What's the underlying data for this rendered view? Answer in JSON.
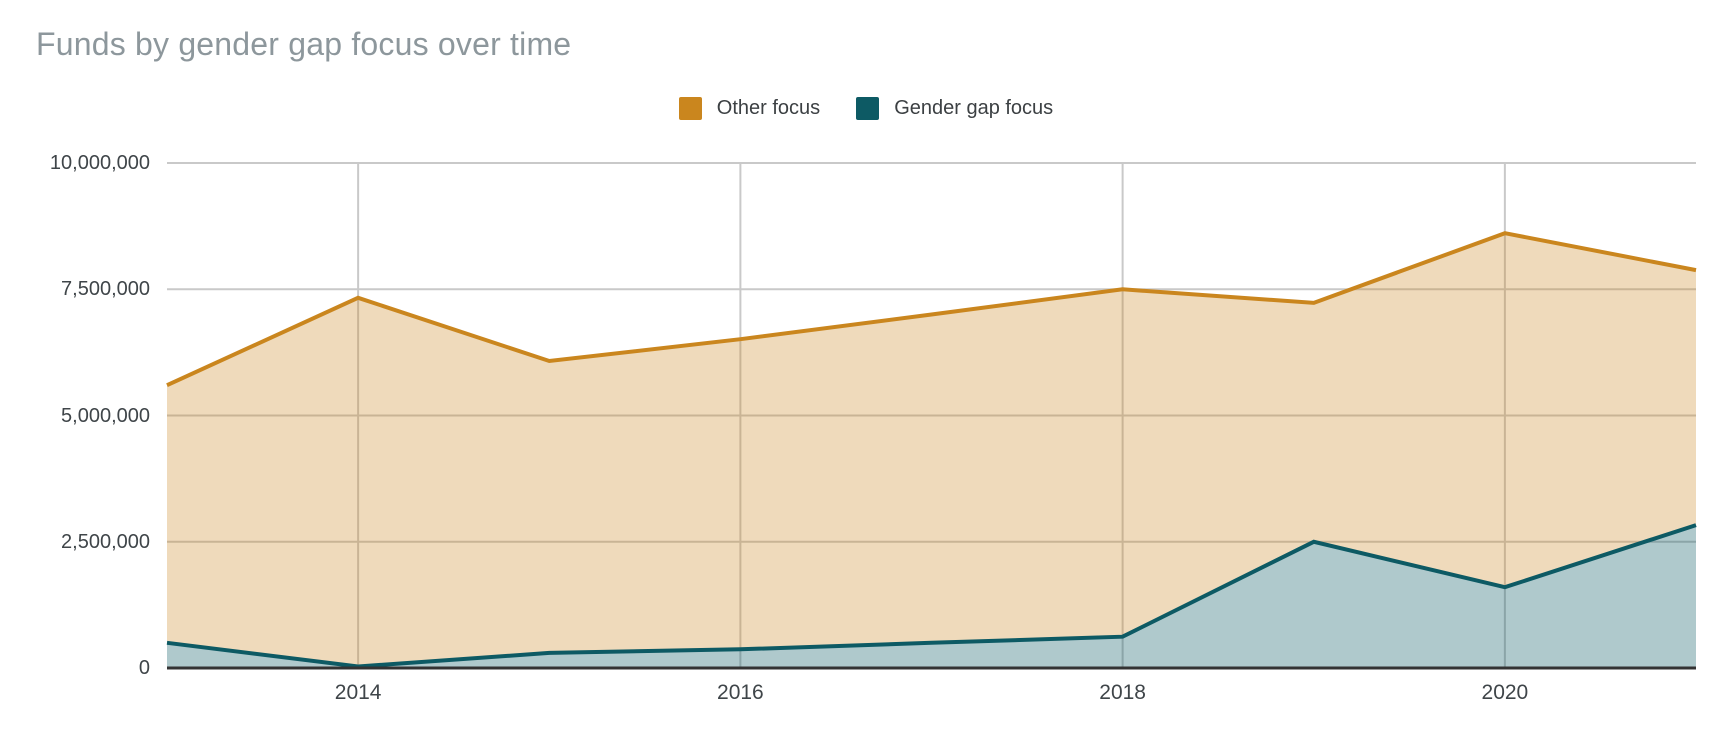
{
  "page": {
    "title": "Funds by gender gap focus over time"
  },
  "legend": {
    "items": [
      {
        "label": "Other focus",
        "color": "#CA861E"
      },
      {
        "label": "Gender gap focus",
        "color": "#0D5A64"
      }
    ]
  },
  "chart_data": {
    "type": "area",
    "title": "Funds by gender gap focus over time",
    "xlabel": "",
    "ylabel": "",
    "x": [
      2013,
      2014,
      2015,
      2016,
      2017,
      2018,
      2019,
      2020,
      2021
    ],
    "series": [
      {
        "name": "Other focus",
        "color": "#CA861E",
        "fill": "rgba(202,134,30,0.30)",
        "values": [
          5600000,
          7330000,
          6080000,
          6510000,
          7000000,
          7500000,
          7230000,
          8610000,
          7880000
        ]
      },
      {
        "name": "Gender gap focus",
        "color": "#0D5A64",
        "fill": "rgba(13,90,100,0.33)",
        "values": [
          500000,
          30000,
          300000,
          370000,
          500000,
          620000,
          2500000,
          1600000,
          2830000
        ]
      }
    ],
    "ylim": [
      0,
      10000000
    ],
    "xlim": [
      2013,
      2021
    ],
    "yticks": [
      {
        "value": 0,
        "label": "0"
      },
      {
        "value": 2500000,
        "label": "2,500,000"
      },
      {
        "value": 5000000,
        "label": "5,000,000"
      },
      {
        "value": 7500000,
        "label": "7,500,000"
      },
      {
        "value": 10000000,
        "label": "10,000,000"
      }
    ],
    "xticks": [
      {
        "value": 2014,
        "label": "2014"
      },
      {
        "value": 2016,
        "label": "2016"
      },
      {
        "value": 2018,
        "label": "2018"
      },
      {
        "value": 2020,
        "label": "2020"
      }
    ],
    "grid": true,
    "legend_position": "top",
    "gridline_color": "#C9C9C9",
    "axis_color": "#333333"
  }
}
